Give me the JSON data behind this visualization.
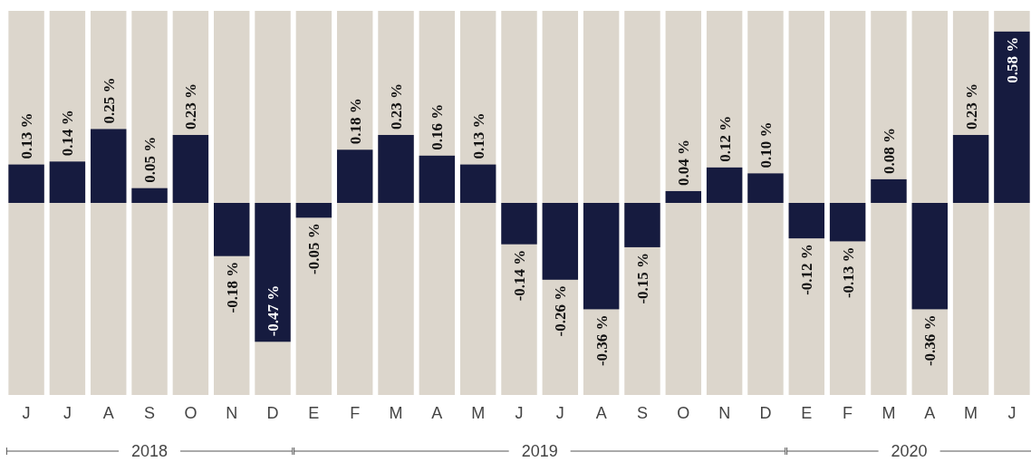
{
  "chart_data": {
    "type": "bar",
    "categories": [
      "J",
      "J",
      "A",
      "S",
      "O",
      "N",
      "D",
      "E",
      "F",
      "M",
      "A",
      "M",
      "J",
      "J",
      "A",
      "S",
      "O",
      "N",
      "D",
      "E",
      "F",
      "M",
      "A",
      "M",
      "J"
    ],
    "values": [
      0.13,
      0.14,
      0.25,
      0.05,
      0.23,
      -0.18,
      -0.47,
      -0.05,
      0.18,
      0.23,
      0.16,
      0.13,
      -0.14,
      -0.26,
      -0.36,
      -0.15,
      0.04,
      0.12,
      0.1,
      -0.12,
      -0.13,
      0.08,
      -0.36,
      0.23,
      0.58
    ],
    "value_labels": [
      "0.13 %",
      "0.14 %",
      "0.25 %",
      "0.05 %",
      "0.23 %",
      "-0.18 %",
      "-0.47 %",
      "-0.05 %",
      "0.18 %",
      "0.23 %",
      "0.16 %",
      "0.13 %",
      "-0.14 %",
      "-0.26 %",
      "-0.36 %",
      "-0.15 %",
      "0.04 %",
      "0.12 %",
      "0.10 %",
      "-0.12 %",
      "-0.13 %",
      "0.08 %",
      "-0.36 %",
      "0.23 %",
      "0.58 %"
    ],
    "color": "#161b3f",
    "ylim": [
      -0.65,
      0.65
    ],
    "tick_labels": "x",
    "annotations": [
      "2018",
      "2019",
      "2020"
    ]
  }
}
